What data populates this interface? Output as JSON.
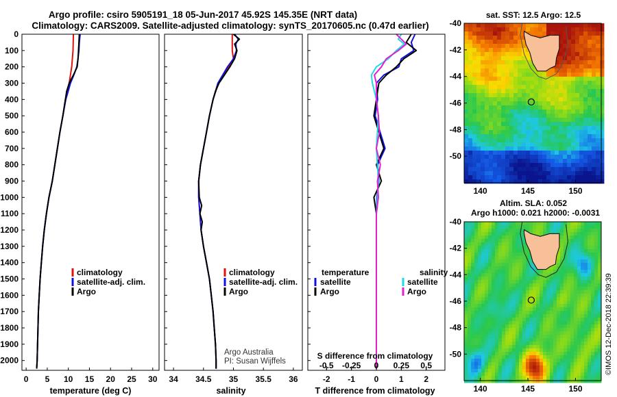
{
  "title_line1": "Argo profile: csiro 5905191_18 05-Jun-2017 45.92S 145.35E (NRT data)",
  "title_line2": "Climatology: CARS2009. Satellite-adjusted climatology: synTS_20170605.nc (0.47d earlier)",
  "depth_ticks": [
    "0",
    "100",
    "200",
    "300",
    "400",
    "500",
    "600",
    "700",
    "800",
    "900",
    "1000",
    "1100",
    "1200",
    "1300",
    "1400",
    "1500",
    "1600",
    "1700",
    "1800",
    "1900",
    "2000"
  ],
  "credit": {
    "line1": "Argo Australia",
    "line2": "PI: Susan Wijffels"
  },
  "watermark": "©IMOS 12-Dec-2018 22:39:39",
  "colors": {
    "climatology": "#e01010",
    "satellite": "#1010dd",
    "argo": "#000000",
    "s_satellite": "#20d8e8",
    "s_argo": "#e020d0"
  },
  "chart_data": [
    {
      "type": "line",
      "xlabel": "temperature (deg C)",
      "x_ticks": [
        "0",
        "5",
        "10",
        "15",
        "20",
        "25",
        "30"
      ],
      "xlim": [
        -1,
        31.5
      ],
      "ylim": [
        2060,
        0
      ],
      "legend": [
        "climatology",
        "satellite-adj. clim.",
        "Argo"
      ],
      "series": [
        {
          "name": "climatology",
          "depth": [
            0,
            100,
            200,
            300,
            400,
            500,
            600,
            700,
            800,
            900,
            1000,
            1100,
            1200,
            1300,
            1400,
            1500,
            1600,
            1700,
            1800,
            1900,
            2000,
            2050
          ],
          "values": [
            11.2,
            11.1,
            10.8,
            10.2,
            9.3,
            8.7,
            8.0,
            7.4,
            6.8,
            6.2,
            5.4,
            4.8,
            4.3,
            3.9,
            3.6,
            3.3,
            3.1,
            2.9,
            2.8,
            2.7,
            2.6,
            2.5
          ]
        },
        {
          "name": "satellite-adj. clim.",
          "depth": [
            0,
            50,
            100,
            150,
            200,
            250,
            300,
            400,
            500,
            600,
            700,
            800,
            900,
            1000,
            1100,
            1200,
            1300,
            1400,
            1500,
            1600,
            1700,
            1800,
            1900,
            2000,
            2050
          ],
          "values": [
            12.8,
            12.6,
            12.5,
            12.3,
            12.0,
            11.3,
            10.5,
            9.4,
            8.7,
            8.0,
            7.4,
            6.8,
            6.2,
            5.4,
            4.8,
            4.3,
            3.9,
            3.6,
            3.3,
            3.1,
            2.9,
            2.8,
            2.7,
            2.6,
            2.5
          ]
        },
        {
          "name": "Argo",
          "depth": [
            0,
            50,
            100,
            150,
            200,
            250,
            300,
            350,
            400,
            500,
            600,
            700,
            800,
            900,
            1000,
            1100,
            1200,
            1300,
            1400,
            1500,
            1600,
            1700,
            1800,
            1900,
            2000,
            2050
          ],
          "values": [
            12.6,
            12.5,
            12.4,
            12.3,
            12.1,
            11.2,
            10.2,
            9.6,
            9.3,
            8.7,
            8.0,
            7.4,
            6.8,
            6.2,
            5.4,
            4.8,
            4.3,
            3.9,
            3.6,
            3.3,
            3.1,
            2.9,
            2.8,
            2.7,
            2.6,
            2.5
          ]
        }
      ]
    },
    {
      "type": "line",
      "xlabel": "salinity",
      "x_ticks": [
        "34",
        "34.5",
        "35",
        "35.5",
        "36"
      ],
      "xlim": [
        33.85,
        36.15
      ],
      "ylim": [
        2060,
        0
      ],
      "legend": [
        "climatology",
        "satellite-adj. clim.",
        "Argo"
      ],
      "series": [
        {
          "name": "climatology",
          "depth": [
            0,
            100,
            150,
            200,
            250,
            300,
            400,
            500,
            600,
            700,
            800,
            900,
            1000,
            1100,
            1200,
            1300,
            1400,
            1500,
            1600,
            1700,
            1800,
            1900,
            2000,
            2050
          ],
          "values": [
            34.98,
            34.98,
            35.0,
            34.92,
            34.84,
            34.75,
            34.66,
            34.6,
            34.55,
            34.5,
            34.45,
            34.42,
            34.42,
            34.44,
            34.46,
            34.5,
            34.55,
            34.6,
            34.63,
            34.66,
            34.68,
            34.7,
            34.71,
            34.71
          ]
        },
        {
          "name": "satellite-adj. clim.",
          "depth": [
            0,
            30,
            60,
            100,
            150,
            200,
            250,
            300,
            400,
            500,
            600,
            700,
            800,
            900,
            1000,
            1100,
            1200,
            1300,
            1400,
            1500,
            1600,
            1700,
            1800,
            1900,
            2000,
            2050
          ],
          "values": [
            35.02,
            35.08,
            35.04,
            35.05,
            35.0,
            34.9,
            34.82,
            34.74,
            34.66,
            34.6,
            34.55,
            34.5,
            34.45,
            34.42,
            34.42,
            34.44,
            34.46,
            34.5,
            34.55,
            34.6,
            34.63,
            34.66,
            34.68,
            34.7,
            34.71,
            34.71
          ]
        },
        {
          "name": "Argo",
          "depth": [
            0,
            30,
            60,
            100,
            150,
            200,
            250,
            300,
            350,
            400,
            500,
            600,
            700,
            800,
            900,
            1000,
            1050,
            1100,
            1150,
            1200,
            1300,
            1400,
            1500,
            1600,
            1700,
            1800,
            1900,
            2000,
            2050
          ],
          "values": [
            35.0,
            35.1,
            35.02,
            35.06,
            35.02,
            34.94,
            34.85,
            34.76,
            34.7,
            34.66,
            34.6,
            34.55,
            34.5,
            34.45,
            34.42,
            34.43,
            34.47,
            34.44,
            34.48,
            34.46,
            34.5,
            34.55,
            34.6,
            34.63,
            34.66,
            34.68,
            34.7,
            34.71,
            34.71
          ]
        }
      ]
    },
    {
      "type": "line",
      "xlabel": "T difference from climatology",
      "x_ticks": [
        "-2",
        "-1",
        "0",
        "1",
        "2"
      ],
      "x2label": "S difference from climatology",
      "x2_ticks": [
        "-0.5",
        "-0.25",
        "0",
        "0.25",
        "0.5"
      ],
      "xlim": [
        -2.75,
        2.75
      ],
      "ylim": [
        2060,
        0
      ],
      "legend_left_title": "temperature",
      "legend_right_title": "salinity",
      "legend": [
        "satellite",
        "Argo",
        "satellite",
        "Argo"
      ],
      "series": [
        {
          "name": "satellite",
          "depth": [
            0,
            50,
            100,
            150,
            200,
            250,
            300,
            400,
            500,
            600,
            700,
            800,
            900,
            1000,
            1100,
            1200,
            1400,
            1600,
            1800,
            2000,
            2050
          ],
          "values": [
            1.55,
            1.4,
            1.5,
            1.0,
            0.9,
            0.3,
            0.0,
            0.05,
            -0.05,
            0.15,
            0.35,
            0.05,
            0.1,
            0.02,
            0.0,
            0.0,
            0.0,
            0.0,
            0.0,
            0.0,
            0.0
          ]
        },
        {
          "name": "Argo",
          "depth": [
            0,
            50,
            100,
            150,
            200,
            250,
            300,
            400,
            500,
            600,
            700,
            800,
            900,
            1000,
            1100,
            1200,
            1400,
            1600,
            1800,
            2000,
            2050
          ],
          "values": [
            1.4,
            1.2,
            1.6,
            1.1,
            0.8,
            0.4,
            0.1,
            0.0,
            -0.1,
            0.1,
            0.3,
            0.0,
            0.2,
            -0.1,
            0.0,
            0.0,
            0.0,
            0.0,
            0.0,
            0.0,
            0.0
          ]
        },
        {
          "name": "satellite",
          "axis": "S",
          "depth": [
            0,
            30,
            60,
            100,
            150,
            200,
            250,
            300,
            400,
            500,
            600,
            700,
            800,
            900,
            1000,
            1100,
            1200,
            1400,
            1600,
            1800,
            2000,
            2050
          ],
          "values": [
            0.25,
            0.22,
            0.28,
            0.2,
            0.12,
            0.0,
            -0.05,
            -0.04,
            0.0,
            0.02,
            0.01,
            0.0,
            0.01,
            0.02,
            0.01,
            0.0,
            0.0,
            0.0,
            0.0,
            0.0,
            0.0,
            0.0
          ]
        },
        {
          "name": "Argo",
          "axis": "S",
          "depth": [
            0,
            30,
            60,
            100,
            150,
            200,
            250,
            300,
            400,
            500,
            600,
            700,
            800,
            900,
            1000,
            1100,
            1200,
            1400,
            1600,
            1800,
            2000,
            2050
          ],
          "values": [
            0.2,
            0.25,
            0.3,
            0.22,
            0.1,
            0.05,
            -0.02,
            0.0,
            0.0,
            0.02,
            0.03,
            0.0,
            0.04,
            0.01,
            0.02,
            0.0,
            0.0,
            0.0,
            0.0,
            0.0,
            0.0,
            0.0
          ]
        }
      ]
    },
    {
      "type": "heatmap",
      "title": "sat. SST: 12.5 Argo: 12.5",
      "x_ticks": [
        "140",
        "145",
        "150"
      ],
      "y_ticks": [
        "-40",
        "-42",
        "-44",
        "-46",
        "-48",
        "-50"
      ],
      "xlim": [
        138.3,
        152.7
      ],
      "ylim": [
        -52,
        -40
      ],
      "float_position": [
        145.35,
        -45.92
      ]
    },
    {
      "type": "heatmap",
      "title_line1": "Altim. SLA: 0.052",
      "title_line2": "Argo h1000: 0.021 h2000: -0.0031",
      "x_ticks": [
        "140",
        "145",
        "150"
      ],
      "y_ticks": [
        "-40",
        "-42",
        "-44",
        "-46",
        "-48",
        "-50"
      ],
      "xlim": [
        138.3,
        152.7
      ],
      "ylim": [
        -52,
        -40
      ],
      "float_position": [
        145.35,
        -45.92
      ]
    }
  ]
}
